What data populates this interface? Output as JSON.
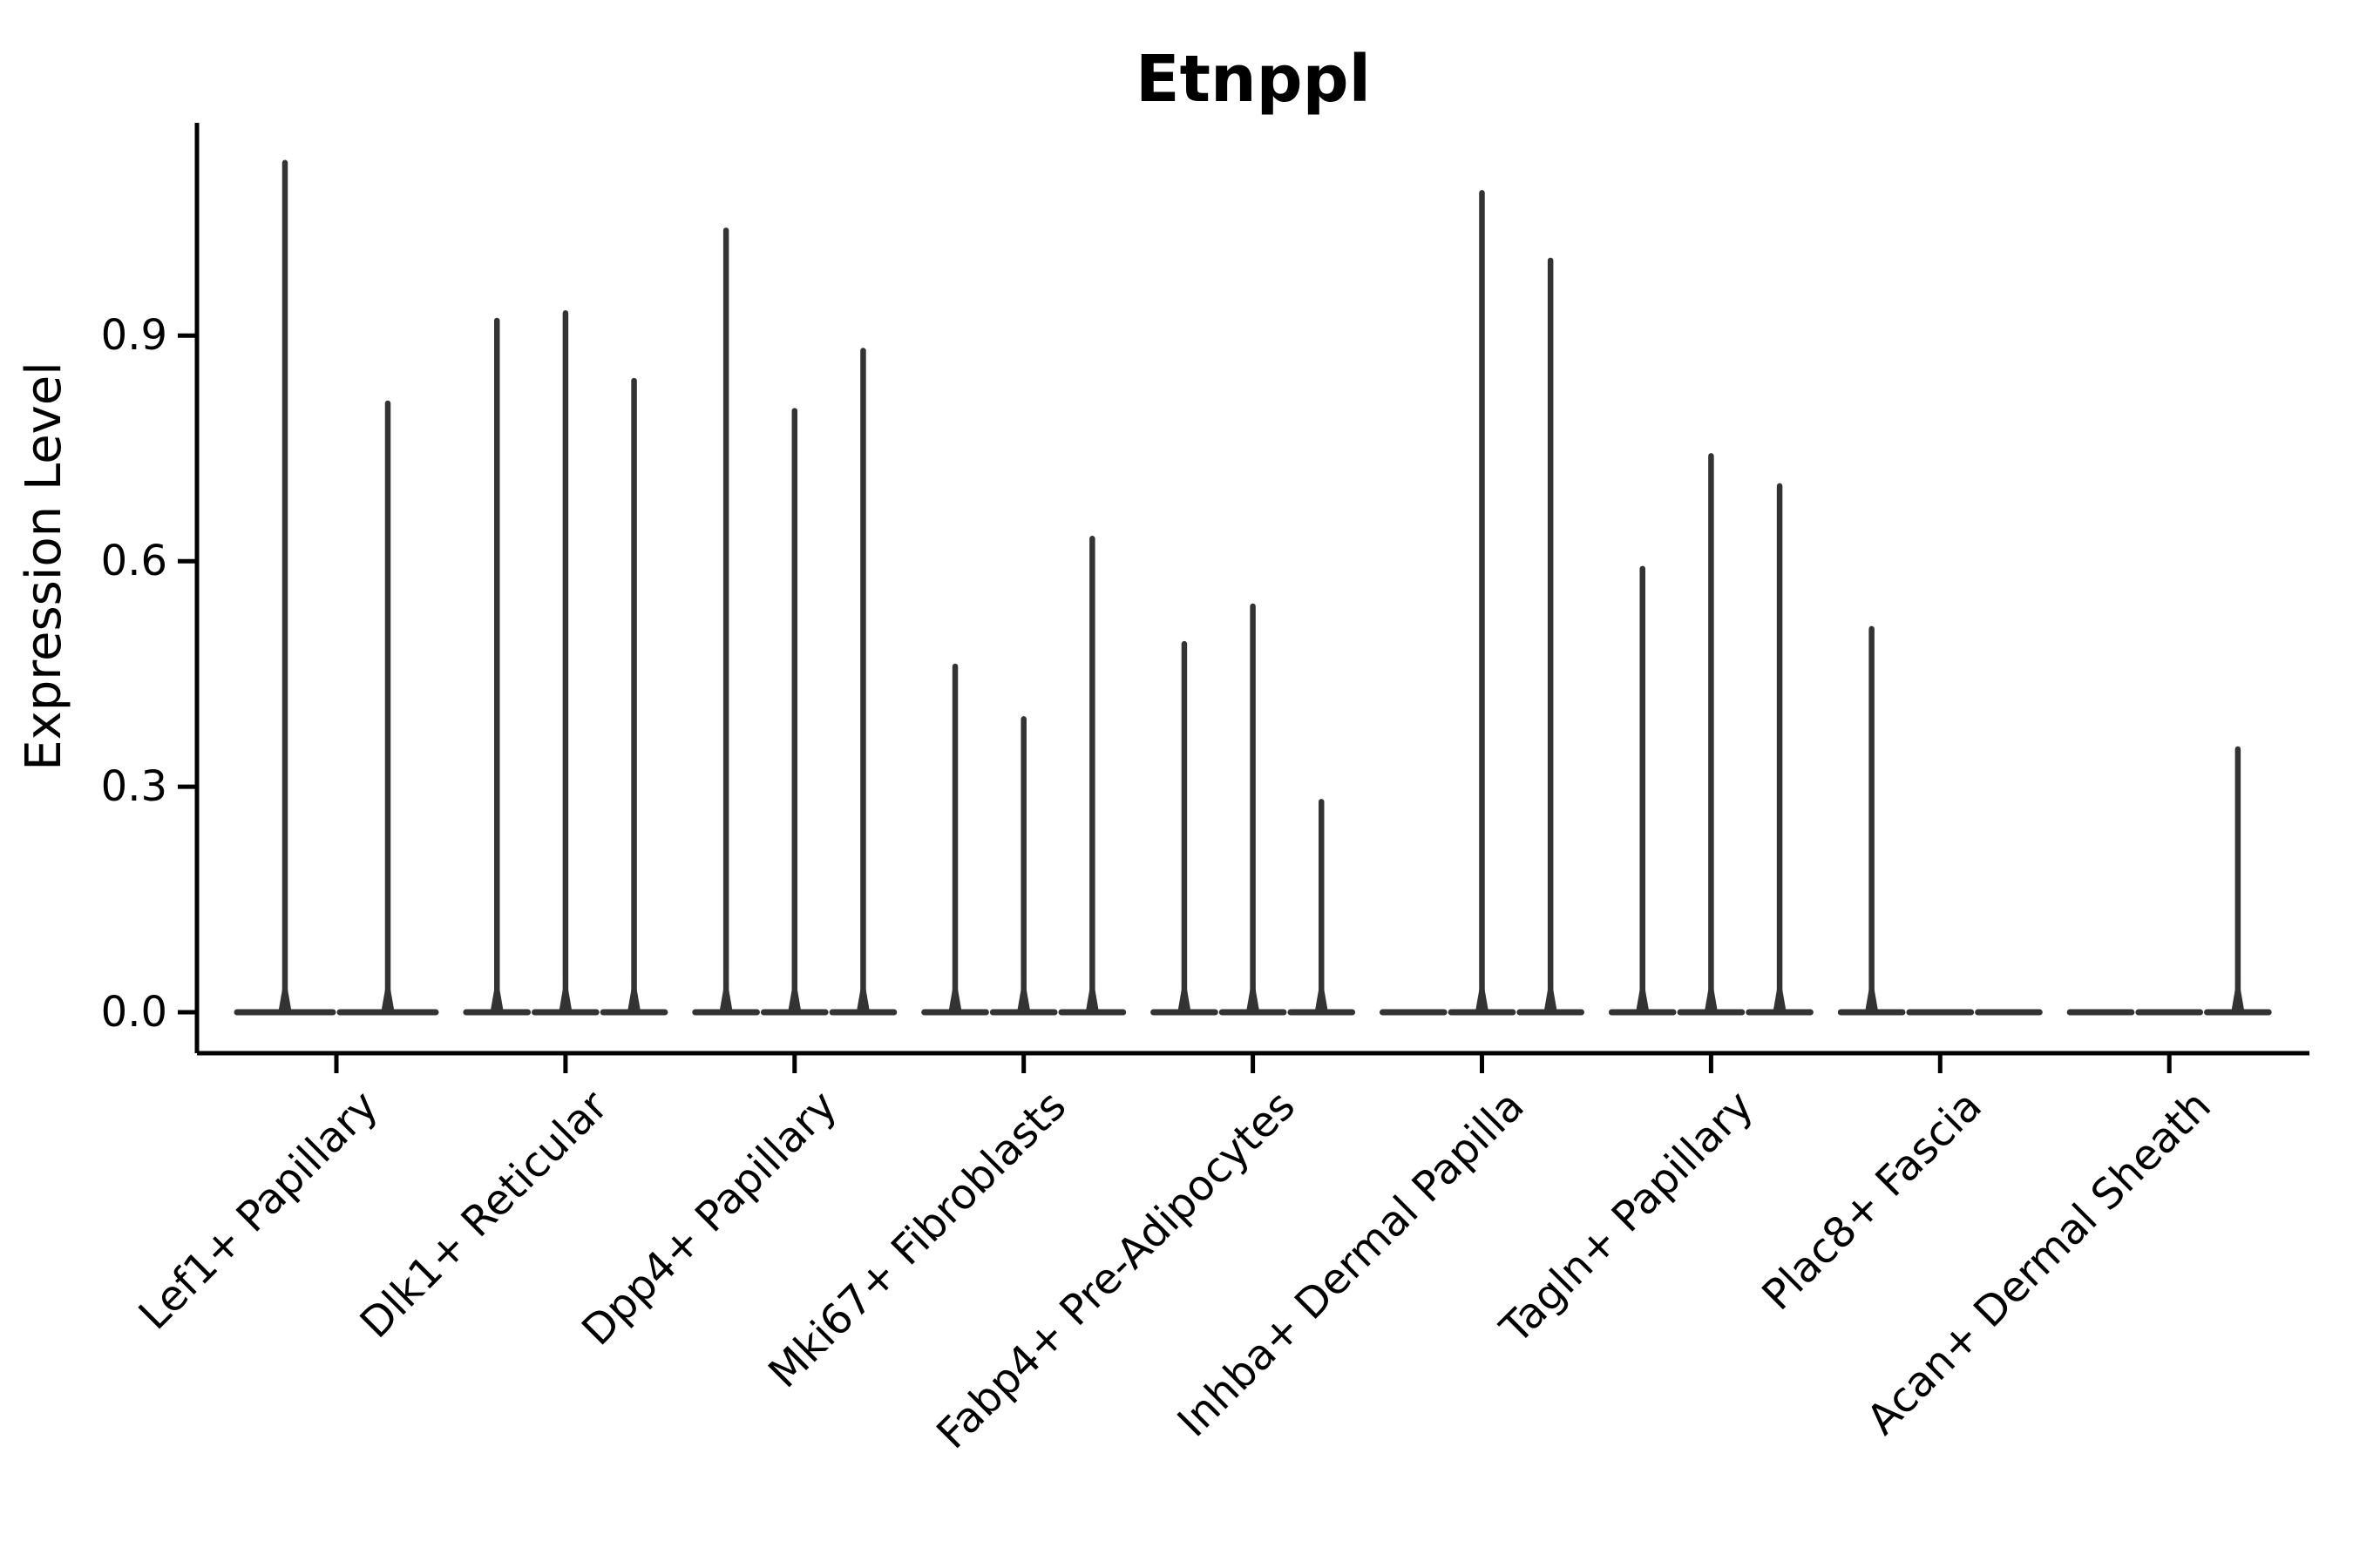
{
  "chart_data": {
    "type": "violin",
    "title": "Etnppl",
    "ylabel": "Expression Level",
    "xlabel": "",
    "categories": [
      "Lef1+ Papillary",
      "Dlk1+ Reticular",
      "Dpp4+ Papillary",
      "Mki67+ Fibroblasts",
      "Fabp4+ Pre-Adipocytes",
      "Inhba+ Dermal Papilla",
      "Tagln+ Papillary",
      "Plac8+ Fascia",
      "Acan+ Dermal Sheath"
    ],
    "series": [
      {
        "category": "Lef1+ Papillary",
        "violin_peaks": [
          1.13,
          0.81
        ]
      },
      {
        "category": "Dlk1+ Reticular",
        "violin_peaks": [
          0.92,
          0.93,
          0.84
        ]
      },
      {
        "category": "Dpp4+ Papillary",
        "violin_peaks": [
          1.04,
          0.8,
          0.88
        ]
      },
      {
        "category": "Mki67+ Fibroblasts",
        "violin_peaks": [
          0.46,
          0.39,
          0.63
        ]
      },
      {
        "category": "Fabp4+ Pre-Adipocytes",
        "violin_peaks": [
          0.49,
          0.54,
          0.28
        ]
      },
      {
        "category": "Inhba+ Dermal Papilla",
        "violin_peaks": [
          0.0,
          1.09,
          1.0
        ]
      },
      {
        "category": "Tagln+ Papillary",
        "violin_peaks": [
          0.59,
          0.74,
          0.7
        ]
      },
      {
        "category": "Plac8+ Fascia",
        "violin_peaks": [
          0.51,
          0.0,
          0.0
        ]
      },
      {
        "category": "Acan+ Dermal Sheath",
        "violin_peaks": [
          0.0,
          0.0,
          0.35
        ]
      }
    ],
    "yticks": [
      0.0,
      0.3,
      0.6,
      0.9
    ],
    "ylim": [
      -0.05,
      1.18
    ],
    "grid": false,
    "legend_position": "none",
    "colors": {
      "violin_stroke": "#333333",
      "axis": "#000000",
      "text": "#000000",
      "background": "#ffffff"
    }
  }
}
